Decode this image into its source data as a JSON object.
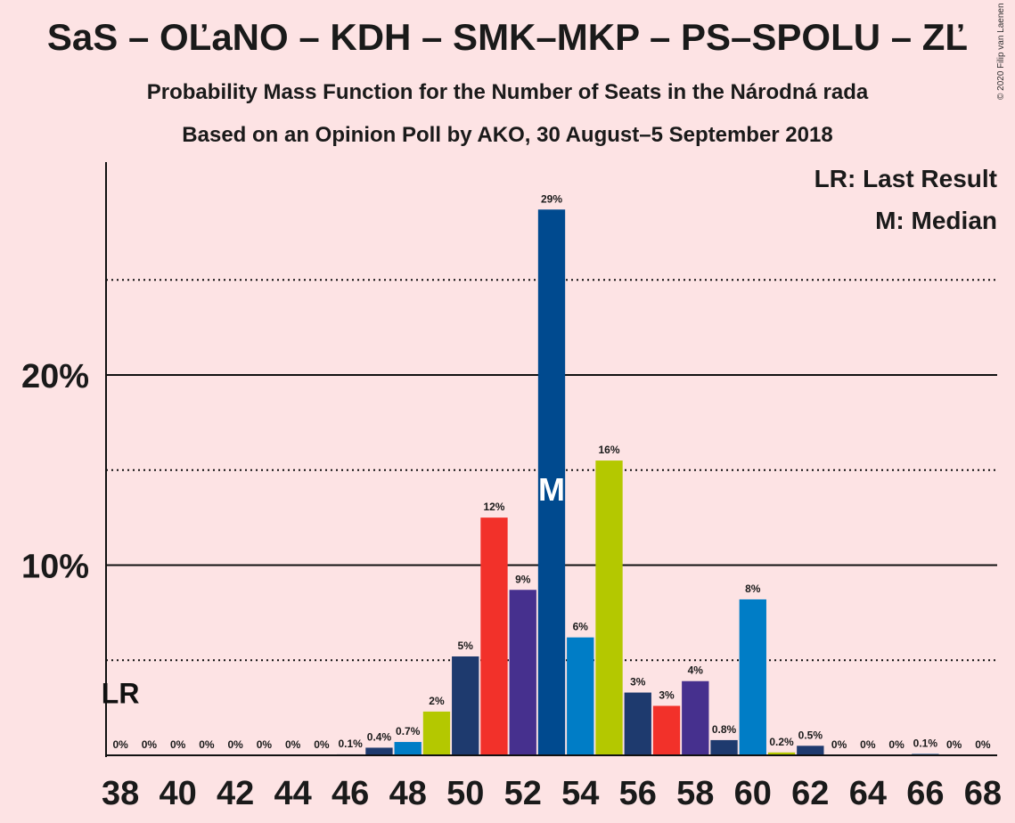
{
  "title": "SaS – OĽaNO – KDH – SMK–MKP – PS–SPOLU – ZĽ",
  "subtitle1": "Probability Mass Function for the Number of Seats in the Národná rada",
  "subtitle2": "Based on an Opinion Poll by AKO, 30 August–5 September 2018",
  "copyright": "© 2020 Filip van Laenen",
  "legend": {
    "lr": "LR: Last Result",
    "m": "M: Median"
  },
  "markers": {
    "lr_label": "LR",
    "median_label": "M"
  },
  "colors": {
    "background": "#fde3e4",
    "SaS": "#b4c800",
    "OLaNO": "#004a8f",
    "KDH": "#f2312a",
    "SMK-MKP": "#46308e",
    "PS-SPOLU": "#007dc6",
    "ZL": "#1e3a6e"
  },
  "chart_data": {
    "type": "bar",
    "x": [
      38,
      39,
      40,
      41,
      42,
      43,
      44,
      45,
      46,
      47,
      48,
      49,
      50,
      51,
      52,
      53,
      54,
      55,
      56,
      57,
      58,
      59,
      60,
      61,
      62,
      63,
      64,
      65,
      66,
      67,
      68
    ],
    "values": [
      0,
      0,
      0,
      0,
      0,
      0,
      0,
      0,
      0.05,
      0.4,
      0.7,
      2.3,
      5.2,
      12.5,
      8.7,
      28.7,
      6.2,
      15.5,
      3.3,
      2.6,
      3.9,
      0.8,
      8.2,
      0.15,
      0.5,
      0,
      0,
      0,
      0.07,
      0,
      0
    ],
    "labels": [
      "0%",
      "0%",
      "0%",
      "0%",
      "0%",
      "0%",
      "0%",
      "0%",
      "0.1%",
      "0.4%",
      "0.7%",
      "2%",
      "5%",
      "12%",
      "9%",
      "29%",
      "6%",
      "16%",
      "3%",
      "3%",
      "4%",
      "0.8%",
      "8%",
      "0.2%",
      "0.5%",
      "0%",
      "0%",
      "0%",
      "0.1%",
      "0%",
      "0%"
    ],
    "bar_parties": [
      "",
      "",
      "",
      "",
      "",
      "",
      "",
      "",
      "OLaNO",
      "ZL",
      "PS-SPOLU",
      "SaS",
      "ZL",
      "KDH",
      "SMK-MKP",
      "OLaNO",
      "PS-SPOLU",
      "SaS",
      "ZL",
      "KDH",
      "SMK-MKP",
      "ZL",
      "PS-SPOLU",
      "SaS",
      "ZL",
      "",
      "",
      "",
      "",
      "",
      ""
    ],
    "x_ticks": [
      "38",
      "40",
      "42",
      "44",
      "46",
      "48",
      "50",
      "52",
      "54",
      "56",
      "58",
      "60",
      "62",
      "64",
      "66",
      "68"
    ],
    "y_ticks": [
      "10%",
      "20%"
    ],
    "ylim": [
      0,
      31
    ],
    "xlim": [
      37.5,
      68.5
    ],
    "gridlines_solid": [
      10,
      20
    ],
    "gridlines_dotted": [
      5,
      15,
      25
    ],
    "last_result": 38,
    "median": 53
  }
}
